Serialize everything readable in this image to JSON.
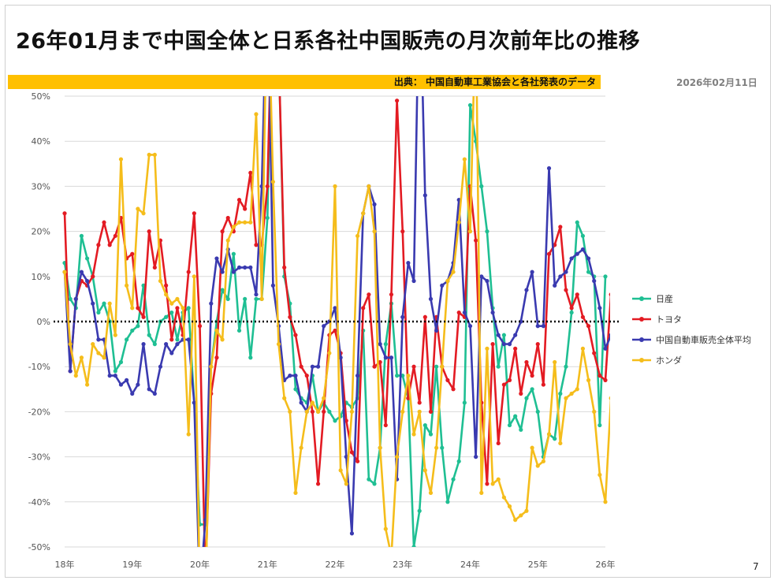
{
  "title": "26年01月まで中国全体と日系各社中国販売の月次前年比の推移",
  "source": "出典： 中国自動車工業協会と各社発表のデータ",
  "date": "2026年02月11日",
  "page_number": "7",
  "colors": {
    "nissan": "#1fbf93",
    "toyota": "#e31b23",
    "china": "#3a3ab0",
    "honda": "#f5bd1b",
    "accent_bar": "#ffc000"
  },
  "chart_data": {
    "type": "line",
    "title": "",
    "xlabel": "",
    "ylabel": "",
    "ylim": [
      -50,
      50
    ],
    "y_ticks": [
      {
        "value": 50,
        "label": "50%"
      },
      {
        "value": 40,
        "label": "40%"
      },
      {
        "value": 30,
        "label": "30%"
      },
      {
        "value": 20,
        "label": "20%"
      },
      {
        "value": 10,
        "label": "10%"
      },
      {
        "value": 0,
        "label": "0%"
      },
      {
        "value": -10,
        "label": "-10%"
      },
      {
        "value": -20,
        "label": "-20%"
      },
      {
        "value": -30,
        "label": "-30%"
      },
      {
        "value": -40,
        "label": "-40%"
      },
      {
        "value": -50,
        "label": "-50%"
      }
    ],
    "x_ticks": [
      {
        "index": 0,
        "label": "18年"
      },
      {
        "index": 12,
        "label": "19年"
      },
      {
        "index": 24,
        "label": "20年"
      },
      {
        "index": 36,
        "label": "21年"
      },
      {
        "index": 48,
        "label": "22年"
      },
      {
        "index": 60,
        "label": "23年"
      },
      {
        "index": 72,
        "label": "24年"
      },
      {
        "index": 84,
        "label": "25年"
      },
      {
        "index": 96,
        "label": "26年"
      }
    ],
    "n_points": 97,
    "legend_position": "right",
    "series": [
      {
        "name": "日産",
        "key": "nissan",
        "values": [
          13,
          5,
          3,
          19,
          14,
          10,
          2,
          4,
          0,
          -11,
          -9,
          -4,
          -2,
          -1,
          8,
          -3,
          -5,
          0,
          1,
          2,
          -4,
          2,
          3,
          -18,
          -45,
          -45,
          -10,
          0,
          7,
          5,
          15,
          -2,
          5,
          -8,
          5,
          5,
          23,
          80,
          60,
          10,
          4,
          -15,
          -17,
          -18,
          -12,
          -20,
          -18,
          -20,
          -22,
          -21,
          -18,
          -19,
          -17,
          -2,
          -35,
          -36,
          -28,
          -5,
          4,
          -12,
          -12,
          -17,
          -50,
          -42,
          -23,
          -25,
          -10,
          -28,
          -40,
          -35,
          -31,
          -18,
          48,
          40,
          30,
          20,
          3,
          -10,
          -3,
          -23,
          -21,
          -24,
          -17,
          -15,
          -20,
          -30,
          -25,
          -26,
          -16,
          -10,
          2,
          22,
          19,
          11,
          10,
          -23,
          10
        ]
      },
      {
        "name": "トヨタ",
        "key": "toyota",
        "values": [
          24,
          -11,
          5,
          9,
          8,
          10,
          17,
          22,
          17,
          19,
          23,
          14,
          15,
          3,
          1,
          20,
          12,
          18,
          8,
          -4,
          3,
          -3,
          11,
          24,
          -1,
          -58,
          -16,
          -8,
          20,
          23,
          20,
          27,
          25,
          33,
          17,
          17,
          30,
          80,
          60,
          12,
          1,
          -3,
          -10,
          -12,
          -20,
          -36,
          -20,
          -3,
          -2,
          -7,
          -22,
          -29,
          -31,
          3,
          6,
          -10,
          -9,
          -23,
          6,
          49,
          20,
          -17,
          -10,
          -18,
          1,
          -20,
          1,
          -10,
          -13,
          -15,
          2,
          1,
          30,
          18,
          -18,
          -36,
          -5,
          -27,
          -14,
          -13,
          -6,
          -16,
          -9,
          -12,
          -5,
          -14,
          15,
          17,
          21,
          7,
          3,
          6,
          1,
          -1,
          -7,
          -12,
          -13,
          6
        ]
      },
      {
        "name": "中国自動車販売全体平均",
        "key": "china",
        "values": [
          11,
          -11,
          5,
          11,
          9,
          4,
          -4,
          -4,
          -12,
          -12,
          -14,
          -13,
          -16,
          -14,
          -5,
          -15,
          -16,
          -10,
          -5,
          -7,
          -5,
          -4,
          -4,
          -18,
          -60,
          -44,
          4,
          14,
          11,
          16,
          11,
          12,
          12,
          12,
          6,
          30,
          80,
          8,
          -1,
          -13,
          -12,
          -12,
          -18,
          -20,
          -10,
          -10,
          -1,
          0,
          3,
          -8,
          -30,
          -47,
          -12,
          24,
          30,
          26,
          -5,
          -8,
          -8,
          -35,
          1,
          13,
          9,
          80,
          28,
          5,
          -2,
          8,
          9,
          13,
          27,
          2,
          -1,
          -30,
          10,
          9,
          2,
          -3,
          -5,
          -5,
          -3,
          0,
          7,
          11,
          -1,
          -1,
          34,
          8,
          10,
          11,
          14,
          15,
          16,
          14,
          9,
          3,
          -6,
          -3
        ]
      },
      {
        "name": "ホンダ",
        "key": "honda",
        "values": [
          11,
          -5,
          -12,
          -8,
          -14,
          -5,
          -7,
          -8,
          4,
          -3,
          36,
          8,
          3,
          25,
          24,
          37,
          37,
          9,
          6,
          4,
          5,
          3,
          -25,
          10,
          -60,
          -60,
          -10,
          -2,
          -4,
          18,
          21,
          22,
          22,
          22,
          46,
          5,
          80,
          31,
          -5,
          -17,
          -20,
          -38,
          -28,
          -20,
          -18,
          -20,
          -17,
          -7,
          30,
          -33,
          -36,
          -20,
          19,
          24,
          30,
          20,
          -28,
          -46,
          -52,
          -30,
          -20,
          -12,
          -25,
          -20,
          -33,
          -38,
          -28,
          -10,
          9,
          11,
          22,
          36,
          20,
          70,
          -38,
          -6,
          -36,
          -35,
          -39,
          -41,
          -44,
          -43,
          -42,
          -28,
          -32,
          -31,
          -25,
          -9,
          -27,
          -17,
          -16,
          -15,
          -6,
          -13,
          -20,
          -34,
          -40,
          -17
        ]
      }
    ]
  }
}
